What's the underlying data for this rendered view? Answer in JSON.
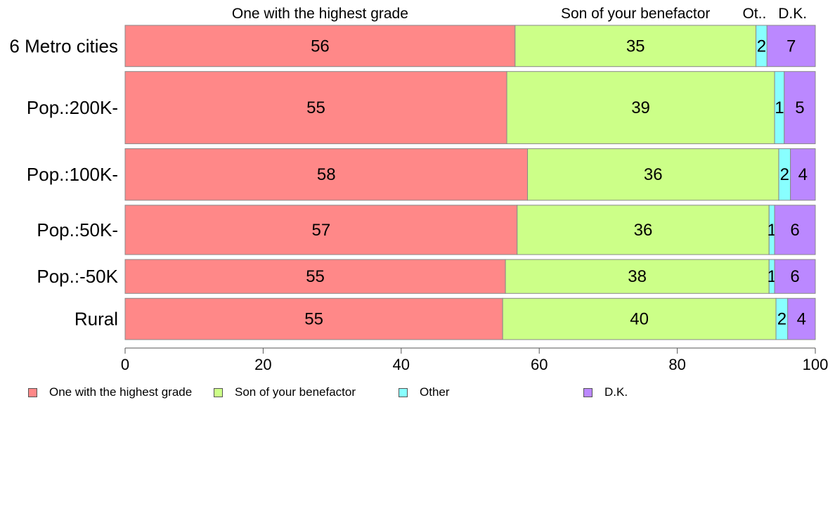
{
  "chart_data": {
    "type": "bar",
    "orientation": "horizontal",
    "stacked": true,
    "title": "",
    "xlabel": "",
    "ylabel": "",
    "xlim": [
      0,
      100
    ],
    "x_ticks": [
      0,
      20,
      40,
      60,
      80,
      100
    ],
    "grid": false,
    "legend_position": "bottom",
    "categories": [
      "6 Metro cities",
      "Pop.:200K-",
      "Pop.:100K-",
      "Pop.:50K-",
      "Pop.:-50K",
      "Rural"
    ],
    "row_weights": [
      0.56,
      0.98,
      0.7,
      0.67,
      0.46,
      0.56
    ],
    "series": [
      {
        "name": "One with the highest grade",
        "color": "#ff8888",
        "values": [
          56.5,
          55.3,
          58.3,
          56.8,
          55.1,
          54.7
        ],
        "labels": [
          "56",
          "55",
          "58",
          "57",
          "55",
          "55"
        ]
      },
      {
        "name": "Son of your benefactor",
        "color": "#ccff88",
        "values": [
          34.9,
          38.8,
          36.4,
          36.5,
          38.2,
          39.6
        ],
        "labels": [
          "35",
          "39",
          "36",
          "36",
          "38",
          "40"
        ]
      },
      {
        "name": "Other",
        "color": "#88ffff",
        "values": [
          1.6,
          1.4,
          1.7,
          0.8,
          0.8,
          1.7
        ],
        "labels": [
          "2",
          "1",
          "2",
          "1",
          "1",
          "2"
        ]
      },
      {
        "name": "D.K.",
        "color": "#bb88ff",
        "values": [
          7.0,
          4.5,
          3.6,
          5.9,
          5.9,
          4.0
        ],
        "labels": [
          "7",
          "5",
          "4",
          "6",
          "6",
          "4"
        ]
      }
    ],
    "top_labels": [
      "One with the highest grade",
      "Son of your benefactor",
      "Ot..",
      "D.K."
    ]
  }
}
